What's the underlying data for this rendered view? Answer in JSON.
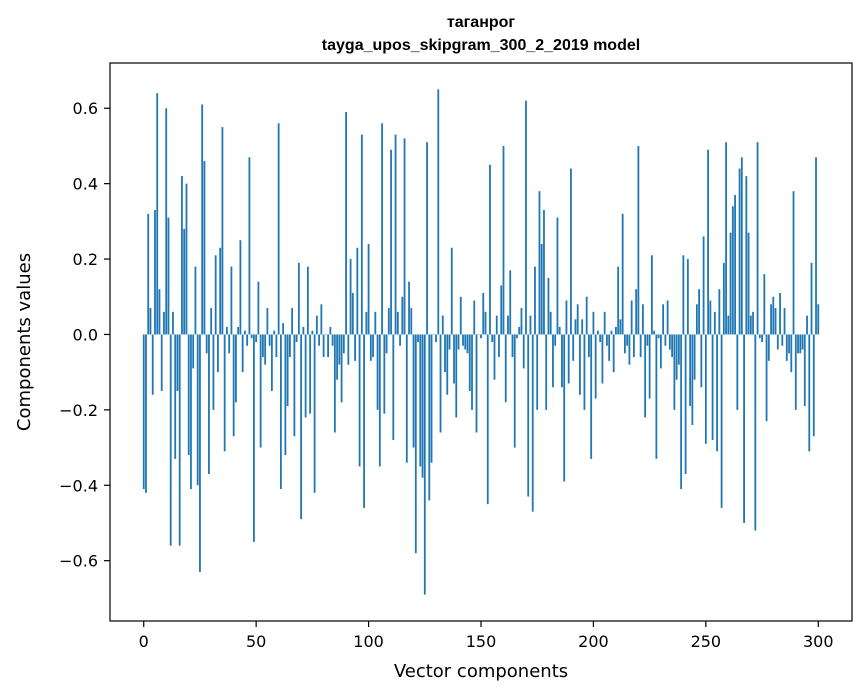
{
  "chart_data": {
    "type": "bar",
    "title": "таганрог",
    "subtitle": "tayga_upos_skipgram_300_2_2019 model",
    "xlabel": "Vector components",
    "ylabel": "Components values",
    "xlim": [
      -15,
      315
    ],
    "ylim": [
      -0.76,
      0.72
    ],
    "xticks": [
      0,
      50,
      100,
      150,
      200,
      250,
      300
    ],
    "xtick_labels": [
      "0",
      "50",
      "100",
      "150",
      "200",
      "250",
      "300"
    ],
    "yticks": [
      -0.6,
      -0.4,
      -0.2,
      0.0,
      0.2,
      0.4,
      0.6
    ],
    "ytick_labels": [
      "−0.6",
      "−0.4",
      "−0.2",
      "0.0",
      "0.2",
      "0.4",
      "0.6"
    ],
    "bar_color": "#1f77b4",
    "grid": false,
    "values": [
      -0.41,
      -0.42,
      0.32,
      0.07,
      -0.16,
      0.33,
      0.64,
      0.12,
      -0.15,
      0.06,
      0.6,
      0.31,
      -0.56,
      0.06,
      -0.33,
      -0.15,
      -0.56,
      0.42,
      0.28,
      0.4,
      -0.32,
      -0.41,
      -0.09,
      0.18,
      -0.4,
      -0.63,
      0.61,
      0.46,
      -0.05,
      -0.37,
      0.07,
      -0.2,
      0.21,
      -0.1,
      0.23,
      0.55,
      -0.31,
      0.02,
      -0.05,
      0.18,
      -0.27,
      -0.18,
      0.02,
      0.25,
      -0.1,
      0.01,
      -0.03,
      0.47,
      -0.01,
      -0.55,
      -0.02,
      0.14,
      -0.3,
      -0.06,
      -0.08,
      0.07,
      -0.03,
      -0.15,
      0.01,
      -0.06,
      0.56,
      -0.41,
      0.03,
      -0.32,
      -0.19,
      -0.06,
      0.07,
      -0.27,
      -0.02,
      0.19,
      -0.49,
      0.02,
      -0.22,
      0.18,
      -0.21,
      0.01,
      -0.42,
      0.05,
      -0.03,
      0.08,
      -0.06,
      0.0,
      -0.06,
      0.02,
      -0.03,
      -0.26,
      -0.12,
      -0.08,
      -0.18,
      -0.05,
      0.59,
      -0.08,
      0.2,
      0.11,
      -0.07,
      0.23,
      -0.35,
      0.53,
      -0.46,
      0.06,
      0.24,
      -0.07,
      -0.06,
      0.06,
      -0.2,
      -0.35,
      0.56,
      -0.21,
      -0.05,
      0.07,
      0.49,
      -0.28,
      0.53,
      0.06,
      -0.03,
      0.1,
      0.52,
      -0.34,
      0.14,
      0.07,
      -0.3,
      -0.58,
      -0.02,
      -0.35,
      -0.38,
      -0.69,
      0.51,
      -0.44,
      -0.34,
      0.0,
      -0.02,
      0.65,
      -0.26,
      0.05,
      -0.1,
      -0.16,
      -0.04,
      0.23,
      -0.13,
      -0.22,
      -0.04,
      0.1,
      -0.03,
      -0.04,
      -0.05,
      -0.15,
      -0.2,
      0.09,
      -0.26,
      0.0,
      -0.01,
      0.11,
      0.06,
      -0.45,
      0.45,
      -0.02,
      -0.12,
      0.05,
      -0.06,
      0.13,
      0.5,
      -0.18,
      0.05,
      0.17,
      -0.06,
      -0.3,
      -0.01,
      0.02,
      0.07,
      -0.09,
      0.62,
      -0.43,
      0.05,
      -0.47,
      0.18,
      -0.2,
      0.38,
      0.24,
      0.33,
      -0.2,
      0.15,
      0.06,
      -0.14,
      -0.03,
      0.31,
      0.02,
      -0.14,
      -0.39,
      0.09,
      -0.13,
      0.44,
      -0.07,
      0.04,
      0.08,
      -0.16,
      0.04,
      -0.2,
      0.1,
      -0.06,
      -0.33,
      0.06,
      -0.17,
      0.01,
      -0.02,
      -0.13,
      0.06,
      -0.03,
      -0.07,
      0.01,
      -0.1,
      0.02,
      0.18,
      0.04,
      0.32,
      -0.05,
      -0.03,
      -0.08,
      0.09,
      -0.06,
      0.12,
      0.5,
      -0.06,
      0.08,
      -0.22,
      -0.03,
      -0.17,
      0.21,
      0.01,
      -0.33,
      -0.01,
      -0.09,
      0.08,
      -0.03,
      0.09,
      -0.04,
      -0.06,
      -0.2,
      -0.12,
      -0.08,
      -0.41,
      0.21,
      -0.37,
      0.2,
      -0.19,
      -0.24,
      -0.12,
      0.08,
      0.12,
      -0.14,
      0.26,
      -0.29,
      0.49,
      0.09,
      -0.28,
      0.06,
      -0.31,
      0.12,
      -0.46,
      0.19,
      0.51,
      0.05,
      0.27,
      0.34,
      0.37,
      -0.2,
      0.44,
      0.47,
      -0.5,
      0.42,
      0.27,
      0.05,
      0.06,
      -0.52,
      0.51,
      -0.01,
      -0.02,
      0.16,
      -0.23,
      -0.07,
      0.08,
      0.1,
      0.07,
      -0.04,
      0.11,
      -0.03,
      0.07,
      -0.07,
      -0.05,
      -0.1,
      0.38,
      -0.2,
      -0.05,
      -0.05,
      -0.04,
      -0.19,
      0.05,
      -0.31,
      0.19,
      -0.27,
      0.47,
      0.08
    ]
  }
}
